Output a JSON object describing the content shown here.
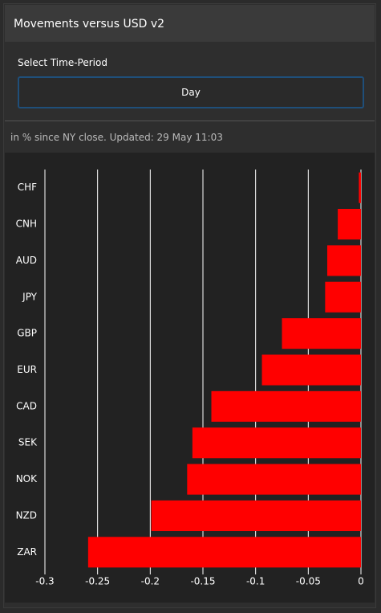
{
  "header": {
    "title": "Movements versus USD v2"
  },
  "controls": {
    "label": "Select Time-Period",
    "selected": "Day"
  },
  "subtitle": "in % since NY close. Updated: 29 May 11:03",
  "chart_data": {
    "type": "hbar",
    "categories": [
      "CHF",
      "CNH",
      "AUD",
      "JPY",
      "GBP",
      "EUR",
      "CAD",
      "SEK",
      "NOK",
      "NZD",
      "ZAR"
    ],
    "values": [
      -0.002,
      -0.022,
      -0.032,
      -0.034,
      -0.075,
      -0.094,
      -0.142,
      -0.16,
      -0.165,
      -0.199,
      -0.259
    ],
    "color": "#ff0000",
    "xlim": [
      -0.3,
      0
    ],
    "xticks": [
      -0.3,
      -0.25,
      -0.2,
      -0.15,
      -0.1,
      -0.05,
      0
    ],
    "grid": true
  }
}
